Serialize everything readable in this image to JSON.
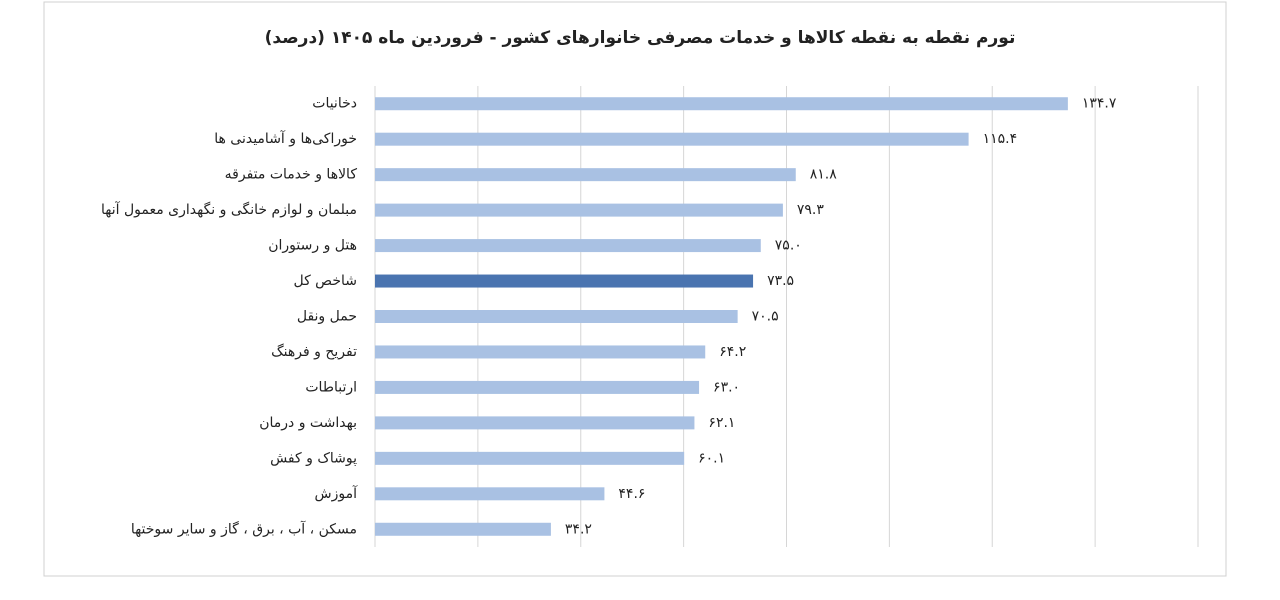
{
  "chart_data": {
    "type": "barh",
    "title": "تورم نقطه به نقطه کالاها و خدمات مصرفی خانوارهای کشور - فروردین ماه ۱۴۰۵ (درصد)",
    "categories": [
      "دخانیات",
      "خوراکی‌ها و آشامیدنی ها",
      "کالاها و خدمات متفرقه",
      "مبلمان و لوازم خانگی و نگهداری معمول آنها",
      "هتل و رستوران",
      "شاخص کل",
      "حمل ونقل",
      "تفریح و فرهنگ",
      "ارتباطات",
      "بهداشت و درمان",
      "پوشاک و کفش",
      "آموزش",
      "مسکن ، آب ، برق ، گاز و سایر سوختها"
    ],
    "values": [
      134.7,
      115.4,
      81.8,
      79.3,
      75.0,
      73.5,
      70.5,
      64.2,
      63.0,
      62.1,
      60.1,
      44.6,
      34.2
    ],
    "value_labels": [
      "۱۳۴.۷",
      "۱۱۵.۴",
      "۸۱.۸",
      "۷۹.۳",
      "۷۵.۰",
      "۷۳.۵",
      "۷۰.۵",
      "۶۴.۲",
      "۶۳.۰",
      "۶۲.۱",
      "۶۰.۱",
      "۴۴.۶",
      "۳۴.۲"
    ],
    "colors": [
      "#a9c1e3",
      "#a9c1e3",
      "#a9c1e3",
      "#a9c1e3",
      "#a9c1e3",
      "#4a74b0",
      "#a9c1e3",
      "#a9c1e3",
      "#a9c1e3",
      "#a9c1e3",
      "#a9c1e3",
      "#a9c1e3",
      "#a9c1e3"
    ],
    "xlim": [
      0,
      160
    ],
    "xticks": [
      0,
      20,
      40,
      60,
      80,
      100,
      120,
      140,
      160
    ],
    "grid": true
  }
}
